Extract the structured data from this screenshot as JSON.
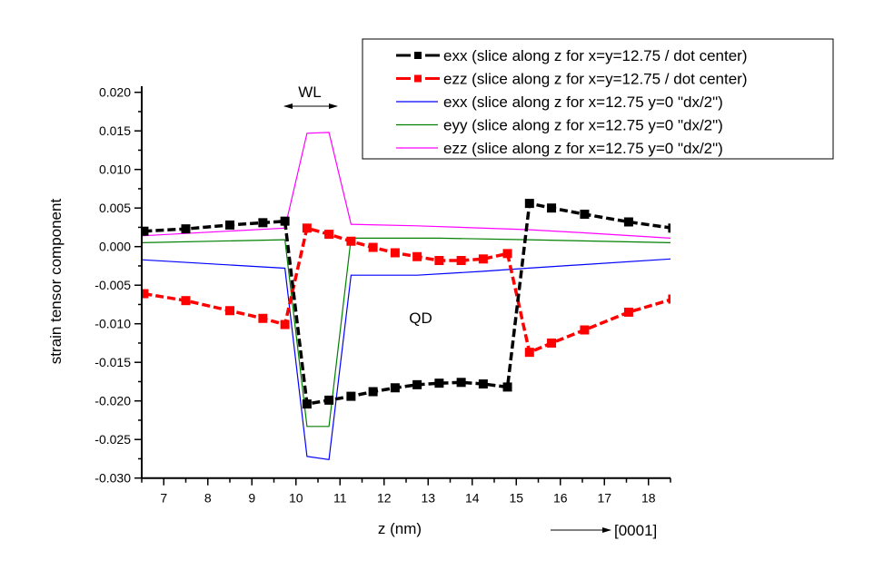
{
  "chart_data": {
    "type": "line",
    "title": "",
    "xlabel": "z (nm)",
    "ylabel": "strain tensor component",
    "xlim": [
      6.5,
      18.5
    ],
    "ylim": [
      -0.03,
      0.02
    ],
    "xticks": [
      7,
      8,
      9,
      10,
      11,
      12,
      13,
      14,
      15,
      16,
      17,
      18
    ],
    "yticks": [
      0.02,
      0.015,
      0.01,
      0.005,
      0.0,
      -0.005,
      -0.01,
      -0.015,
      -0.02,
      -0.025,
      -0.03
    ],
    "ytick_labels": [
      "0.020",
      "0.015",
      "0.010",
      "0.005",
      "0.000",
      "-0.005",
      "-0.010",
      "-0.015",
      "-0.020",
      "-0.025",
      "-0.030"
    ],
    "grid": false,
    "legend_placement": "top-right",
    "annotations": {
      "wl": "WL",
      "qd": "QD",
      "direction": "[0001]"
    },
    "series": [
      {
        "name": "exx (slice along z for x=y=12.75 / dot center)",
        "color": "#000000",
        "style": "dashed-square-markers",
        "x": [
          6.55,
          7.5,
          8.5,
          9.25,
          9.75,
          10.25,
          10.75,
          11.25,
          11.75,
          12.25,
          12.75,
          13.25,
          13.75,
          14.25,
          14.8,
          15.3,
          15.8,
          16.55,
          17.55,
          18.55
        ],
        "y": [
          0.002,
          0.0023,
          0.0028,
          0.0031,
          0.0033,
          -0.0204,
          -0.0199,
          -0.0194,
          -0.0188,
          -0.0183,
          -0.0179,
          -0.0177,
          -0.0176,
          -0.0178,
          -0.0182,
          0.0056,
          0.005,
          0.0042,
          0.0032,
          0.0024
        ]
      },
      {
        "name": "ezz (slice along z for x=y=12.75 / dot center)",
        "color": "#ff0000",
        "style": "dashed-square-markers",
        "x": [
          6.55,
          7.5,
          8.5,
          9.25,
          9.75,
          10.25,
          10.75,
          11.25,
          11.75,
          12.25,
          12.75,
          13.25,
          13.75,
          14.25,
          14.8,
          15.3,
          15.8,
          16.55,
          17.55,
          18.55
        ],
        "y": [
          -0.0061,
          -0.007,
          -0.0083,
          -0.0093,
          -0.0101,
          0.0024,
          0.0016,
          0.0007,
          -0.0001,
          -0.0008,
          -0.0013,
          -0.0018,
          -0.0018,
          -0.0016,
          -0.0009,
          -0.0137,
          -0.0125,
          -0.0108,
          -0.0085,
          -0.0068
        ]
      },
      {
        "name": "exx (slice along z for x=12.75 y=0 \"dx/2\")",
        "color": "#0000ff",
        "style": "solid",
        "x": [
          6.5,
          9.75,
          10.25,
          10.75,
          11.25,
          12.75,
          14.25,
          15.25,
          18.5
        ],
        "y": [
          -0.0017,
          -0.0028,
          -0.0272,
          -0.0276,
          -0.0037,
          -0.0037,
          -0.0032,
          -0.0028,
          -0.0016
        ]
      },
      {
        "name": "eyy (slice along z for x=12.75 y=0 \"dx/2\")",
        "color": "#008000",
        "style": "solid",
        "x": [
          6.5,
          9.75,
          10.25,
          10.75,
          11.25,
          13.25,
          15.25,
          18.5
        ],
        "y": [
          0.0005,
          0.0009,
          -0.0233,
          -0.0233,
          0.0011,
          0.0011,
          0.0009,
          0.0005
        ]
      },
      {
        "name": "ezz (slice along z for x=12.75 y=0 \"dx/2\")",
        "color": "#ff00ff",
        "style": "solid",
        "x": [
          6.5,
          9.75,
          10.25,
          10.75,
          11.25,
          12.75,
          15.25,
          16.5,
          18.5
        ],
        "y": [
          0.0014,
          0.0024,
          0.0147,
          0.0148,
          0.0029,
          0.0027,
          0.0022,
          0.0018,
          0.0011
        ]
      }
    ]
  }
}
